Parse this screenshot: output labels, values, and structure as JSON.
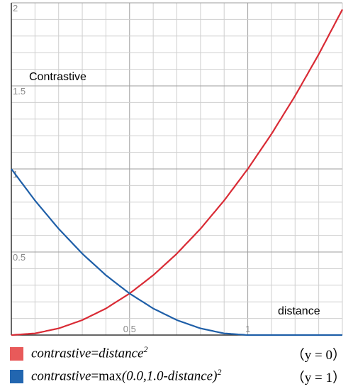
{
  "chart_data": {
    "type": "line",
    "ylabel": "Contrastive",
    "xlabel": "distance",
    "xlim": [
      0,
      1.4
    ],
    "ylim": [
      0,
      2
    ],
    "x_ticks": [
      "0.5",
      "1"
    ],
    "y_ticks": [
      "0.5",
      "1",
      "1.5",
      "2"
    ],
    "grid": true,
    "legend_position": "bottom",
    "series": [
      {
        "color": "#d92b35",
        "x": [
          0,
          0.1,
          0.2,
          0.3,
          0.4,
          0.5,
          0.6,
          0.7,
          0.8,
          0.9,
          1.0,
          1.1,
          1.2,
          1.3,
          1.4
        ],
        "values": [
          0,
          0.01,
          0.04,
          0.09,
          0.16,
          0.25,
          0.36,
          0.49,
          0.64,
          0.81,
          1.0,
          1.21,
          1.44,
          1.69,
          1.96
        ]
      },
      {
        "color": "#1f5fa8",
        "x": [
          0,
          0.1,
          0.2,
          0.3,
          0.4,
          0.5,
          0.6,
          0.7,
          0.8,
          0.9,
          1.0,
          1.1,
          1.2,
          1.3,
          1.4
        ],
        "values": [
          1.0,
          0.81,
          0.64,
          0.49,
          0.36,
          0.25,
          0.16,
          0.09,
          0.04,
          0.01,
          0,
          0,
          0,
          0,
          0
        ]
      }
    ]
  },
  "legend": [
    {
      "color": "#e85a5a",
      "var": "contrastive",
      "eq": "=",
      "rhs_italic": "distance",
      "exp": "2",
      "condition": "（y = 0）"
    },
    {
      "color": "#2266b0",
      "var": "contrastive",
      "eq": "=",
      "fn": "max",
      "rhs_italic": "(0.0,1.0-distance)",
      "exp": "2",
      "condition": "（y = 1）"
    }
  ]
}
